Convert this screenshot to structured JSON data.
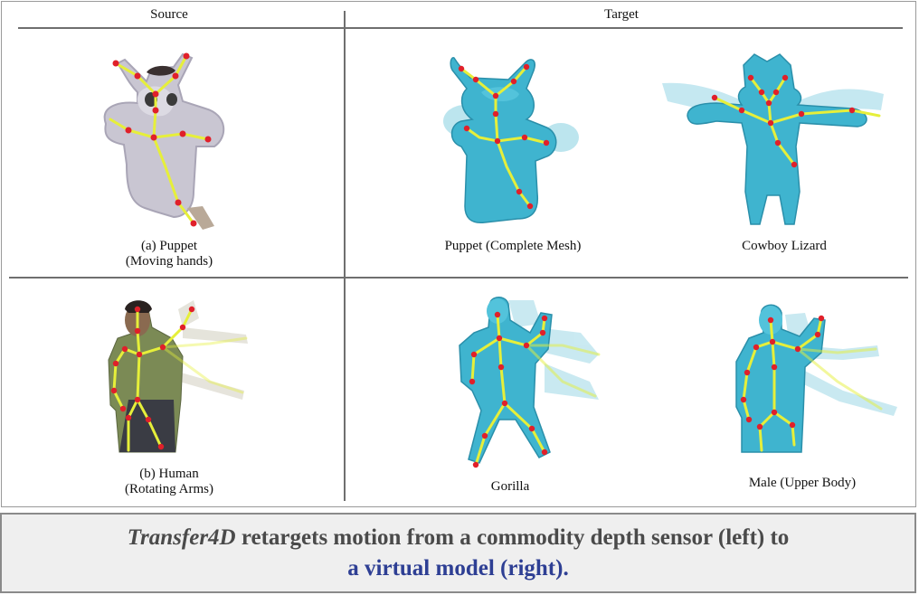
{
  "headers": {
    "source": "Source",
    "target": "Target"
  },
  "rows": [
    {
      "source_label_1": "(a) Puppet",
      "source_label_2": "(Moving hands)",
      "targets": [
        "Puppet (Complete Mesh)",
        "Cowboy Lizard"
      ]
    },
    {
      "source_label_1": "(b) Human",
      "source_label_2": "(Rotating Arms)",
      "targets": [
        "Gorilla",
        "Male (Upper Body)"
      ]
    }
  ],
  "caption": {
    "name": "Transfer4D",
    "line1_rest": " retargets  motion from a commodity depth sensor (left) to",
    "line2": "a virtual model (right)."
  },
  "colors": {
    "mesh": "#3fb4cf",
    "skeleton": "#e6ef3a",
    "joint": "#e0202a",
    "caption_blue": "#2e3f94"
  }
}
